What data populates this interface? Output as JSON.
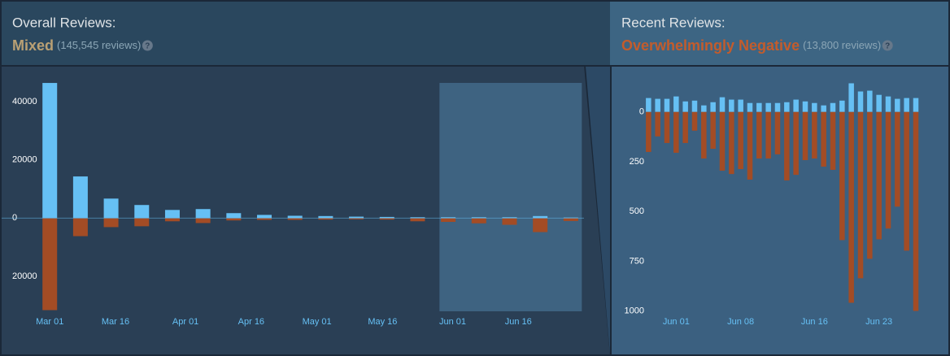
{
  "chart_data": [
    {
      "type": "bar",
      "title": "Overall Reviews:",
      "summary": "Mixed",
      "review_count": "(145,545 reviews)",
      "help_icon": "?",
      "x": [
        0,
        7,
        14,
        21,
        28,
        35,
        42,
        49,
        56,
        63,
        70,
        77,
        84,
        91,
        98,
        105,
        112,
        119
      ],
      "series": [
        {
          "color": "#66c0f4",
          "values": [
            46400,
            14300,
            6700,
            4500,
            2800,
            3100,
            1700,
            1100,
            800,
            700,
            500,
            400,
            300,
            300,
            300,
            300,
            700,
            200
          ]
        },
        {
          "color": "#a34c25",
          "values": [
            -31600,
            -6200,
            -3100,
            -2800,
            -1100,
            -1700,
            -800,
            -600,
            -600,
            -500,
            -400,
            -500,
            -1100,
            -1300,
            -1800,
            -2300,
            -4800,
            -1000
          ]
        }
      ],
      "xlim": [
        -11,
        122
      ],
      "xticks": [
        {
          "value": 0,
          "label": "Mar 01"
        },
        {
          "value": 15,
          "label": "Mar 16"
        },
        {
          "value": 31,
          "label": "Apr 01"
        },
        {
          "value": 46,
          "label": "Apr 16"
        },
        {
          "value": 61,
          "label": "May 01"
        },
        {
          "value": 76,
          "label": "May 16"
        },
        {
          "value": 92,
          "label": "Jun 01"
        },
        {
          "value": 107,
          "label": "Jun 16"
        }
      ],
      "ylim": [
        -32000,
        52000
      ],
      "yticks": [
        40000,
        20000,
        0,
        {
          "value": -20000,
          "label": "20000"
        }
      ],
      "highlight_range": [
        89,
        121.5
      ]
    },
    {
      "type": "bar",
      "title": "Recent Reviews:",
      "summary": "Overwhelmingly Negative",
      "review_count": "(13,800 reviews)",
      "help_icon": "?",
      "x": [
        -3,
        -2,
        -1,
        0,
        1,
        2,
        3,
        4,
        5,
        6,
        7,
        8,
        9,
        10,
        11,
        12,
        13,
        14,
        15,
        16,
        17,
        18,
        19,
        20,
        21,
        22,
        23,
        24,
        25,
        26
      ],
      "series": [
        {
          "color": "#66c0f4",
          "values": [
            70,
            66,
            66,
            78,
            53,
            57,
            33,
            49,
            74,
            62,
            62,
            45,
            45,
            45,
            45,
            49,
            62,
            53,
            45,
            33,
            45,
            57,
            144,
            103,
            107,
            86,
            78,
            66,
            70,
            70
          ]
        },
        {
          "color": "#a34c25",
          "values": [
            -201,
            -123,
            -156,
            -205,
            -156,
            -94,
            -234,
            -185,
            -295,
            -312,
            -287,
            -340,
            -234,
            -234,
            -213,
            -344,
            -316,
            -242,
            -234,
            -275,
            -291,
            -644,
            -959,
            -836,
            -738,
            -640,
            -586,
            -476,
            -697,
            -1000
          ]
        }
      ],
      "xlim": [
        -7,
        29
      ],
      "xticks": [
        {
          "value": 0,
          "label": "Jun 01"
        },
        {
          "value": 7,
          "label": "Jun 08"
        },
        {
          "value": 15,
          "label": "Jun 16"
        },
        {
          "value": 22,
          "label": "Jun 23"
        }
      ],
      "ylim": [
        -1010,
        195
      ],
      "yticks": [
        0,
        {
          "value": -250,
          "label": "250"
        },
        {
          "value": -500,
          "label": "500"
        },
        {
          "value": -750,
          "label": "750"
        },
        {
          "value": -1000,
          "label": "1000"
        }
      ]
    }
  ]
}
